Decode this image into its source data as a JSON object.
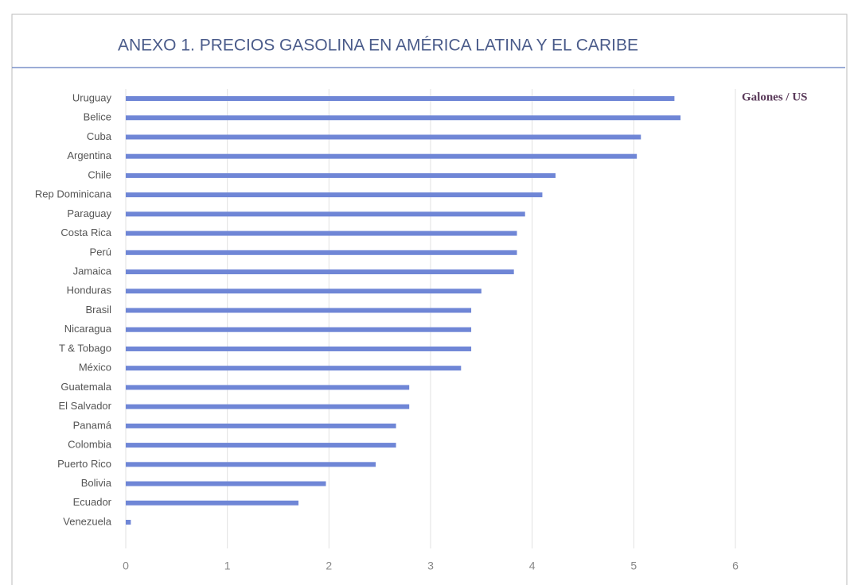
{
  "chart_data": {
    "type": "barh",
    "title": "ANEXO 1. PRECIOS GASOLINA EN AMÉRICA LATINA Y EL CARIBE",
    "annotation": "Galones / US",
    "categories": [
      "Uruguay",
      "Belice",
      "Cuba",
      "Argentina",
      "Chile",
      "Rep Dominicana",
      "Paraguay",
      "Costa Rica",
      "Perú",
      "Jamaica",
      "Honduras",
      "Brasil",
      "Nicaragua",
      "T & Tobago",
      "México",
      "Guatemala",
      "El Salvador",
      "Panamá",
      "Colombia",
      "Puerto Rico",
      "Bolivia",
      "Ecuador",
      "Venezuela"
    ],
    "values": [
      5.4,
      5.46,
      5.07,
      5.03,
      4.23,
      4.1,
      3.93,
      3.85,
      3.85,
      3.82,
      3.5,
      3.4,
      3.4,
      3.4,
      3.3,
      2.79,
      2.79,
      2.66,
      2.66,
      2.46,
      1.97,
      1.7,
      0.05
    ],
    "color": "#6f86d6",
    "xlim": [
      0,
      6
    ],
    "xticks": [
      0,
      1,
      2,
      3,
      4,
      5,
      6
    ],
    "grid": true
  }
}
